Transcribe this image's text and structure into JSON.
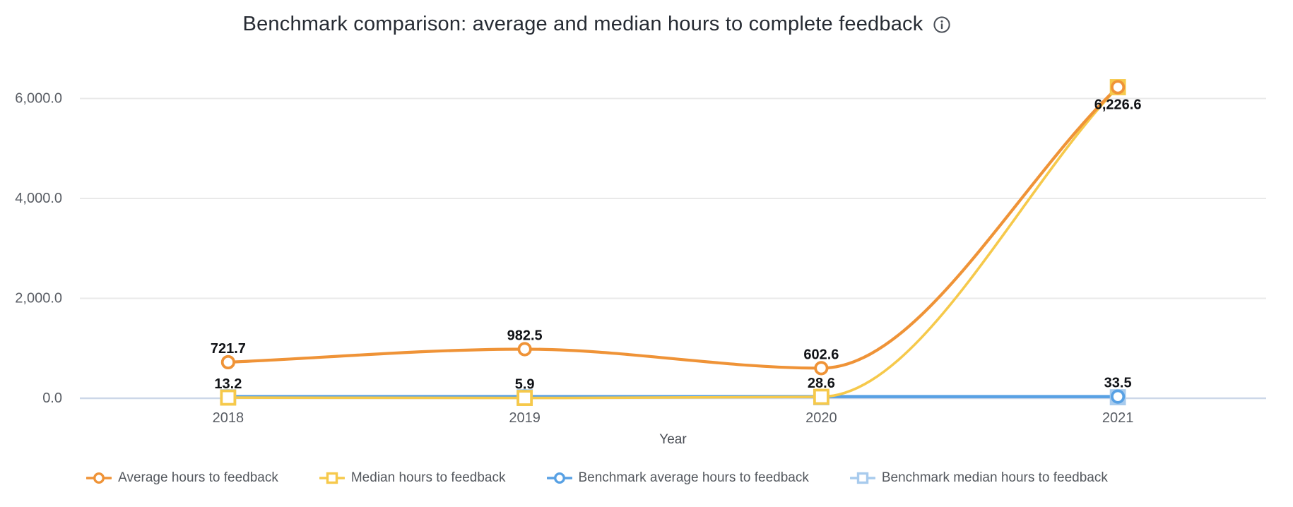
{
  "title": {
    "text": "Benchmark comparison: average and median hours to complete feedback"
  },
  "chart_data": {
    "type": "line",
    "x": [
      "2018",
      "2019",
      "2020",
      "2021"
    ],
    "xlabel": "Year",
    "y_ticks": [
      {
        "value": 6000,
        "label": "6,000.0"
      },
      {
        "value": 4000,
        "label": "4,000.0"
      },
      {
        "value": 2000,
        "label": "2,000.0"
      },
      {
        "value": 0,
        "label": "0.0"
      }
    ],
    "ylim": [
      0,
      6600
    ],
    "grid": true,
    "legend_position": "bottom",
    "series": [
      {
        "name": "Benchmark median hours to feedback",
        "marker": "square",
        "color": "#a8cbed",
        "line_width": 2.5,
        "values": [
          20,
          20,
          20,
          20
        ],
        "labels": [
          null,
          null,
          null,
          null
        ],
        "label_sides": [
          "above",
          "above",
          "above",
          "above"
        ],
        "end_marker_filled": true
      },
      {
        "name": "Benchmark average hours to feedback",
        "marker": "circle",
        "color": "#58a1e4",
        "line_width": 4.6,
        "values": [
          33.5,
          33.5,
          33.5,
          33.5
        ],
        "labels": [
          null,
          null,
          null,
          "33.5"
        ],
        "label_sides": [
          "above",
          "above",
          "above",
          "above"
        ],
        "end_marker_filled": false
      },
      {
        "name": "Median hours to feedback",
        "marker": "square",
        "color": "#f6c94b",
        "line_width": 3.6,
        "values": [
          13.2,
          5.9,
          28.6,
          6226.6
        ],
        "labels": [
          "13.2",
          "5.9",
          "28.6",
          null
        ],
        "label_sides": [
          "above",
          "above",
          "above",
          "above"
        ],
        "end_marker_filled": true,
        "end_marker_fill": "#f2bb40"
      },
      {
        "name": "Average hours to feedback",
        "marker": "circle",
        "color": "#ef9337",
        "line_width": 4.2,
        "values": [
          721.7,
          982.5,
          602.6,
          6226.6
        ],
        "labels": [
          "721.7",
          "982.5",
          "602.6",
          "6,226.6"
        ],
        "label_sides": [
          "above",
          "above",
          "above",
          "below"
        ],
        "end_marker_filled": false
      }
    ],
    "legend_order": [
      "Average hours to feedback",
      "Median hours to feedback",
      "Benchmark average hours to feedback",
      "Benchmark median hours to feedback"
    ]
  },
  "colors": {
    "gridline": "#e9e9e9",
    "zero_line": "#ccd7e8",
    "title_text": "#262b33",
    "axis_text": "#595d64",
    "data_label": "#101216",
    "info_icon": "#4b5058"
  }
}
